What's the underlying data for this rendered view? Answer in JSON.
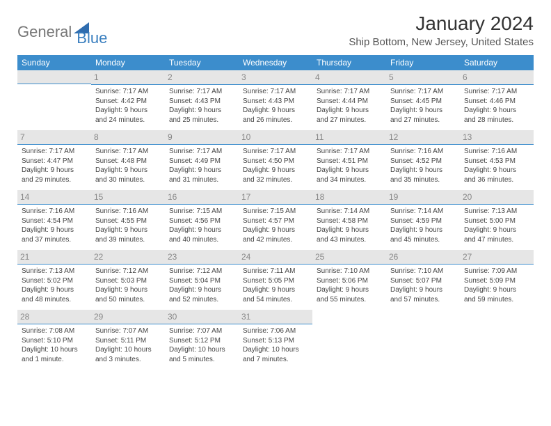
{
  "logo": {
    "general": "General",
    "blue": "Blue"
  },
  "title": "January 2024",
  "location": "Ship Bottom, New Jersey, United States",
  "headers": [
    "Sunday",
    "Monday",
    "Tuesday",
    "Wednesday",
    "Thursday",
    "Friday",
    "Saturday"
  ],
  "colors": {
    "header_bg": "#3c8dcc",
    "accent": "#3a7fbf",
    "daybar_bg": "#e6e6e6"
  },
  "weeks": [
    [
      null,
      {
        "n": "1",
        "sr": "Sunrise: 7:17 AM",
        "ss": "Sunset: 4:42 PM",
        "dl": "Daylight: 9 hours and 24 minutes."
      },
      {
        "n": "2",
        "sr": "Sunrise: 7:17 AM",
        "ss": "Sunset: 4:43 PM",
        "dl": "Daylight: 9 hours and 25 minutes."
      },
      {
        "n": "3",
        "sr": "Sunrise: 7:17 AM",
        "ss": "Sunset: 4:43 PM",
        "dl": "Daylight: 9 hours and 26 minutes."
      },
      {
        "n": "4",
        "sr": "Sunrise: 7:17 AM",
        "ss": "Sunset: 4:44 PM",
        "dl": "Daylight: 9 hours and 27 minutes."
      },
      {
        "n": "5",
        "sr": "Sunrise: 7:17 AM",
        "ss": "Sunset: 4:45 PM",
        "dl": "Daylight: 9 hours and 27 minutes."
      },
      {
        "n": "6",
        "sr": "Sunrise: 7:17 AM",
        "ss": "Sunset: 4:46 PM",
        "dl": "Daylight: 9 hours and 28 minutes."
      }
    ],
    [
      {
        "n": "7",
        "sr": "Sunrise: 7:17 AM",
        "ss": "Sunset: 4:47 PM",
        "dl": "Daylight: 9 hours and 29 minutes."
      },
      {
        "n": "8",
        "sr": "Sunrise: 7:17 AM",
        "ss": "Sunset: 4:48 PM",
        "dl": "Daylight: 9 hours and 30 minutes."
      },
      {
        "n": "9",
        "sr": "Sunrise: 7:17 AM",
        "ss": "Sunset: 4:49 PM",
        "dl": "Daylight: 9 hours and 31 minutes."
      },
      {
        "n": "10",
        "sr": "Sunrise: 7:17 AM",
        "ss": "Sunset: 4:50 PM",
        "dl": "Daylight: 9 hours and 32 minutes."
      },
      {
        "n": "11",
        "sr": "Sunrise: 7:17 AM",
        "ss": "Sunset: 4:51 PM",
        "dl": "Daylight: 9 hours and 34 minutes."
      },
      {
        "n": "12",
        "sr": "Sunrise: 7:16 AM",
        "ss": "Sunset: 4:52 PM",
        "dl": "Daylight: 9 hours and 35 minutes."
      },
      {
        "n": "13",
        "sr": "Sunrise: 7:16 AM",
        "ss": "Sunset: 4:53 PM",
        "dl": "Daylight: 9 hours and 36 minutes."
      }
    ],
    [
      {
        "n": "14",
        "sr": "Sunrise: 7:16 AM",
        "ss": "Sunset: 4:54 PM",
        "dl": "Daylight: 9 hours and 37 minutes."
      },
      {
        "n": "15",
        "sr": "Sunrise: 7:16 AM",
        "ss": "Sunset: 4:55 PM",
        "dl": "Daylight: 9 hours and 39 minutes."
      },
      {
        "n": "16",
        "sr": "Sunrise: 7:15 AM",
        "ss": "Sunset: 4:56 PM",
        "dl": "Daylight: 9 hours and 40 minutes."
      },
      {
        "n": "17",
        "sr": "Sunrise: 7:15 AM",
        "ss": "Sunset: 4:57 PM",
        "dl": "Daylight: 9 hours and 42 minutes."
      },
      {
        "n": "18",
        "sr": "Sunrise: 7:14 AM",
        "ss": "Sunset: 4:58 PM",
        "dl": "Daylight: 9 hours and 43 minutes."
      },
      {
        "n": "19",
        "sr": "Sunrise: 7:14 AM",
        "ss": "Sunset: 4:59 PM",
        "dl": "Daylight: 9 hours and 45 minutes."
      },
      {
        "n": "20",
        "sr": "Sunrise: 7:13 AM",
        "ss": "Sunset: 5:00 PM",
        "dl": "Daylight: 9 hours and 47 minutes."
      }
    ],
    [
      {
        "n": "21",
        "sr": "Sunrise: 7:13 AM",
        "ss": "Sunset: 5:02 PM",
        "dl": "Daylight: 9 hours and 48 minutes."
      },
      {
        "n": "22",
        "sr": "Sunrise: 7:12 AM",
        "ss": "Sunset: 5:03 PM",
        "dl": "Daylight: 9 hours and 50 minutes."
      },
      {
        "n": "23",
        "sr": "Sunrise: 7:12 AM",
        "ss": "Sunset: 5:04 PM",
        "dl": "Daylight: 9 hours and 52 minutes."
      },
      {
        "n": "24",
        "sr": "Sunrise: 7:11 AM",
        "ss": "Sunset: 5:05 PM",
        "dl": "Daylight: 9 hours and 54 minutes."
      },
      {
        "n": "25",
        "sr": "Sunrise: 7:10 AM",
        "ss": "Sunset: 5:06 PM",
        "dl": "Daylight: 9 hours and 55 minutes."
      },
      {
        "n": "26",
        "sr": "Sunrise: 7:10 AM",
        "ss": "Sunset: 5:07 PM",
        "dl": "Daylight: 9 hours and 57 minutes."
      },
      {
        "n": "27",
        "sr": "Sunrise: 7:09 AM",
        "ss": "Sunset: 5:09 PM",
        "dl": "Daylight: 9 hours and 59 minutes."
      }
    ],
    [
      {
        "n": "28",
        "sr": "Sunrise: 7:08 AM",
        "ss": "Sunset: 5:10 PM",
        "dl": "Daylight: 10 hours and 1 minute."
      },
      {
        "n": "29",
        "sr": "Sunrise: 7:07 AM",
        "ss": "Sunset: 5:11 PM",
        "dl": "Daylight: 10 hours and 3 minutes."
      },
      {
        "n": "30",
        "sr": "Sunrise: 7:07 AM",
        "ss": "Sunset: 5:12 PM",
        "dl": "Daylight: 10 hours and 5 minutes."
      },
      {
        "n": "31",
        "sr": "Sunrise: 7:06 AM",
        "ss": "Sunset: 5:13 PM",
        "dl": "Daylight: 10 hours and 7 minutes."
      },
      null,
      null,
      null
    ]
  ]
}
